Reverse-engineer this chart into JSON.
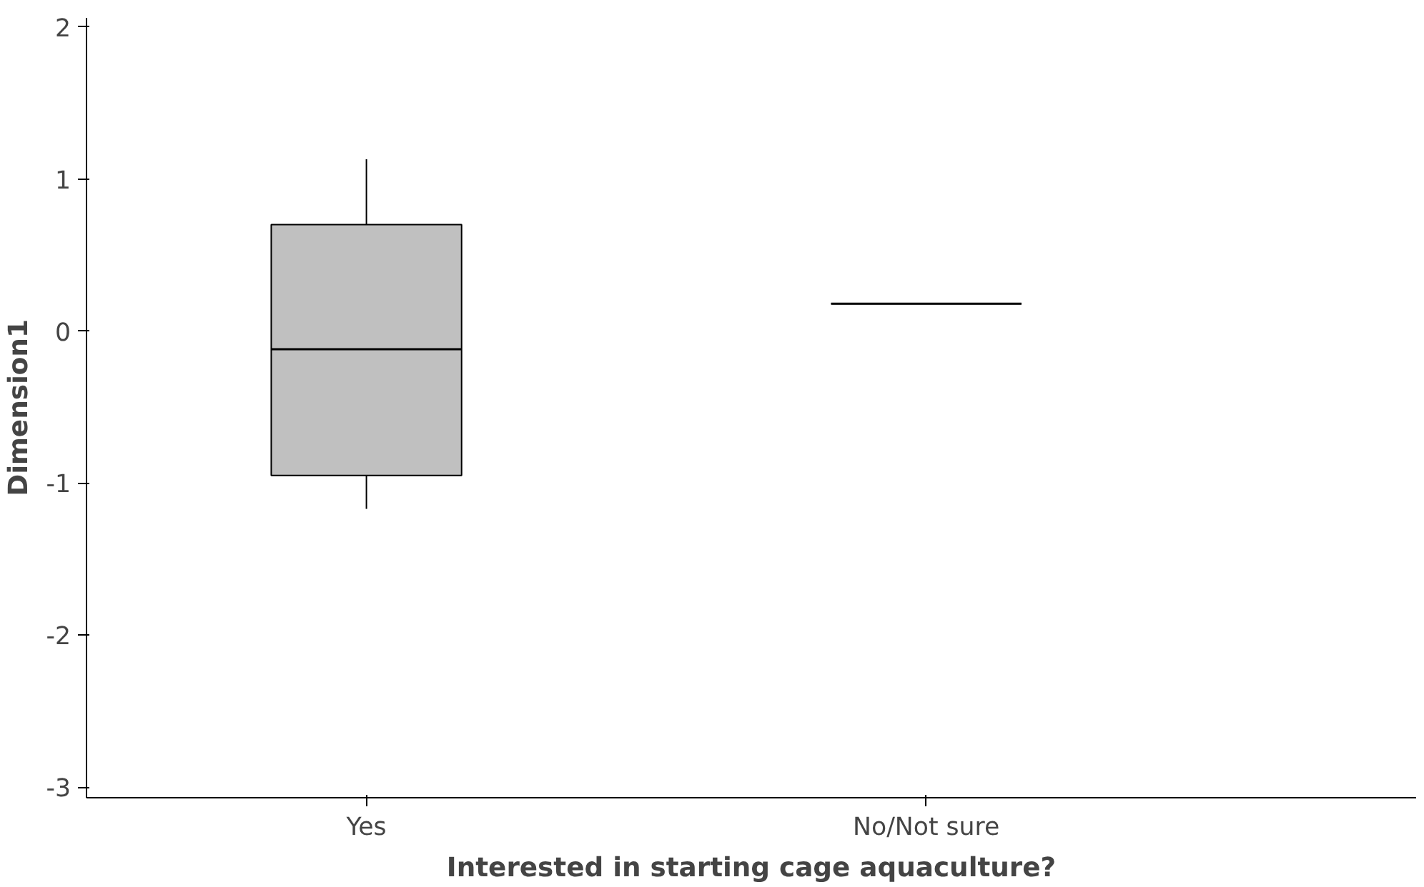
{
  "chart_data": {
    "type": "box",
    "xlabel": "Interested in starting cage aquaculture?",
    "ylabel": "Dimension1",
    "categories": [
      "Yes",
      "No/Not sure"
    ],
    "boxes": [
      {
        "low": -1.17,
        "q1": -0.95,
        "median": -0.12,
        "q3": 0.7,
        "high": 1.13
      },
      {
        "low": 0.18,
        "q1": 0.18,
        "median": 0.18,
        "q3": 0.18,
        "high": 0.18
      }
    ],
    "colors": [
      "#c0c0c0",
      "#000000"
    ],
    "ylim": [
      -3.07,
      2.06
    ],
    "yticks": [
      -3,
      -2,
      -1,
      0,
      1,
      2
    ],
    "grid": false
  }
}
